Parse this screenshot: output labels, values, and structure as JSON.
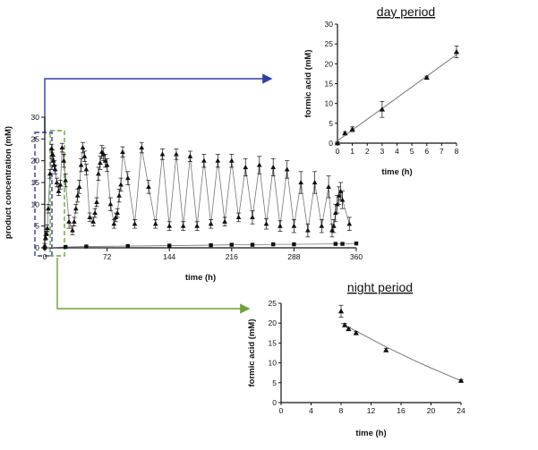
{
  "chart_data": [
    {
      "id": "main",
      "type": "line",
      "title": "",
      "xlabel": "time (h)",
      "ylabel": "product concentration (mM)",
      "xlim": [
        0,
        360
      ],
      "ylim": [
        0,
        30
      ],
      "x_ticks": [
        0,
        72,
        144,
        216,
        288,
        360
      ],
      "y_ticks": [
        0,
        5,
        10,
        15,
        20,
        25,
        30
      ],
      "grid": false,
      "series": [
        {
          "name": "",
          "marker": "triangle",
          "x": [
            0,
            1,
            2,
            3,
            4,
            6,
            8,
            9,
            10,
            11,
            12,
            14,
            16,
            18,
            20,
            22,
            24,
            28,
            32,
            34,
            36,
            38,
            40,
            42,
            44,
            46,
            48,
            52,
            56,
            58,
            60,
            62,
            64,
            66,
            68,
            70,
            72,
            76,
            80,
            82,
            84,
            86,
            88,
            90,
            96,
            104,
            112,
            120,
            128,
            136,
            144,
            152,
            160,
            168,
            176,
            184,
            192,
            200,
            208,
            216,
            224,
            232,
            240,
            248,
            256,
            264,
            272,
            280,
            288,
            296,
            304,
            312,
            320,
            328,
            332,
            334,
            336,
            338,
            340,
            342,
            344,
            352
          ],
          "y": [
            0.5,
            2.3,
            3.3,
            4.5,
            9,
            17,
            22.8,
            21.5,
            20,
            19,
            18,
            15,
            13,
            14.5,
            23,
            20,
            15.5,
            6,
            4,
            6,
            9,
            12,
            14,
            19,
            23,
            21,
            18,
            7,
            6,
            8,
            10.5,
            17,
            19.5,
            22,
            21.5,
            20,
            19,
            10,
            5.5,
            7,
            8,
            12,
            14.5,
            22,
            16,
            5.5,
            23,
            14,
            5.5,
            21.5,
            5,
            21.5,
            5,
            21,
            5,
            20,
            5.5,
            20,
            6,
            20,
            7,
            18.5,
            7,
            19,
            5.5,
            18.5,
            5,
            18,
            5,
            15,
            4,
            15,
            5,
            14,
            4,
            5,
            8,
            10,
            12,
            13,
            11,
            5.5
          ],
          "y_error": [
            0.5,
            0.5,
            0.5,
            0.8,
            1,
            1,
            1,
            1,
            1,
            1,
            1,
            1,
            1,
            1,
            1,
            1.5,
            1.5,
            1.5,
            1,
            1,
            1,
            1.5,
            1.5,
            1.5,
            1.2,
            1.2,
            1.2,
            1,
            1,
            1,
            1,
            1.5,
            1.5,
            1.5,
            1.5,
            1.5,
            1.5,
            1.5,
            1,
            1,
            1,
            1.5,
            1.5,
            1.2,
            1.5,
            1,
            1.2,
            1.5,
            1,
            1.2,
            1,
            1.2,
            1,
            1.2,
            1,
            1.5,
            1,
            1.5,
            1,
            1.5,
            1,
            2,
            1.5,
            2,
            1.2,
            2,
            1.2,
            2,
            1.5,
            2.5,
            1.5,
            2.5,
            1.5,
            2.5,
            1.5,
            1.5,
            2,
            2,
            2,
            2,
            2,
            1.5
          ]
        },
        {
          "name": "",
          "marker": "square",
          "x": [
            0,
            24,
            48,
            96,
            144,
            192,
            216,
            240,
            264,
            288,
            336,
            344,
            360
          ],
          "y": [
            0,
            0.2,
            0.3,
            0.4,
            0.5,
            0.6,
            0.7,
            0.7,
            0.8,
            0.8,
            0.9,
            0.9,
            1.0
          ],
          "y_error": [
            0,
            0,
            0,
            0,
            0,
            0,
            0,
            0,
            0,
            0,
            0,
            0,
            0
          ]
        }
      ]
    },
    {
      "id": "day",
      "type": "line",
      "title": "day period",
      "xlabel": "time (h)",
      "ylabel": "formic acid (mM)",
      "xlim": [
        0,
        8
      ],
      "ylim": [
        0,
        30
      ],
      "x_ticks": [
        0,
        1,
        2,
        3,
        4,
        5,
        6,
        7,
        8
      ],
      "y_ticks": [
        0,
        5,
        10,
        15,
        20,
        25,
        30
      ],
      "grid": false,
      "series": [
        {
          "name": "",
          "marker": "triangle",
          "x": [
            0,
            0.5,
            1,
            3,
            6,
            8
          ],
          "y": [
            0,
            2.5,
            3.5,
            8.5,
            16.5,
            23
          ],
          "y_error": [
            0.3,
            0.4,
            0.6,
            2.0,
            0.4,
            1.5
          ]
        }
      ],
      "fit_line": {
        "x": [
          0,
          8
        ],
        "y": [
          0.6,
          22.3
        ]
      }
    },
    {
      "id": "night",
      "type": "line",
      "title": "night period",
      "xlabel": "time (h)",
      "ylabel": "formic acid (mM)",
      "xlim": [
        0,
        24
      ],
      "ylim": [
        0,
        25
      ],
      "x_ticks": [
        0,
        4,
        8,
        12,
        16,
        20,
        24
      ],
      "y_ticks": [
        0,
        5,
        10,
        15,
        20,
        25
      ],
      "grid": false,
      "series": [
        {
          "name": "",
          "marker": "triangle",
          "x": [
            8,
            8.5,
            9,
            10,
            14,
            24
          ],
          "y": [
            23,
            19.5,
            18.5,
            17.5,
            13.2,
            5.5
          ],
          "y_error": [
            1.5,
            0.4,
            0.4,
            0.4,
            0.4,
            0.3
          ]
        }
      ],
      "fit_curve": {
        "x": [
          8,
          10,
          12,
          14,
          16,
          18,
          20,
          22,
          24
        ],
        "y": [
          20.0,
          18.0,
          16.0,
          14.0,
          12.2,
          10.4,
          8.7,
          7.1,
          5.5
        ]
      }
    }
  ],
  "colors": {
    "blue_highlight": "#2d3fa6",
    "green_highlight": "#6da23a",
    "data_line": "#777777",
    "ink": "#111111"
  }
}
